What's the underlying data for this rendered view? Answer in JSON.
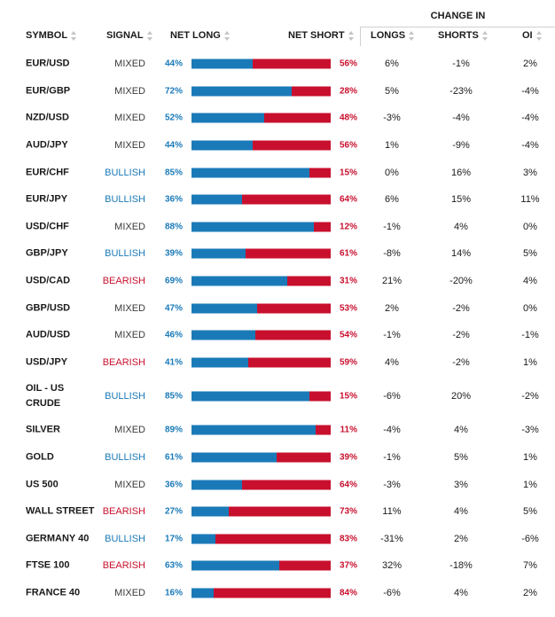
{
  "header": {
    "change_in": "CHANGE IN",
    "symbol": "SYMBOL",
    "signal": "SIGNAL",
    "net_long": "NET LONG",
    "net_short": "NET SHORT",
    "longs": "LONGS",
    "shorts": "SHORTS",
    "oi": "OI"
  },
  "colors": {
    "long": "#1a7ab8",
    "short": "#c8102e",
    "bullish": "#1a7ab8",
    "bearish": "#c8102e",
    "mixed": "#3a3a3a"
  },
  "rows": [
    {
      "symbol": "EUR/USD",
      "signal": "MIXED",
      "net_long": "44%",
      "net_long_value": 44,
      "net_short": "56%",
      "longs": "6%",
      "shorts": "-1%",
      "oi": "2%"
    },
    {
      "symbol": "EUR/GBP",
      "signal": "MIXED",
      "net_long": "72%",
      "net_long_value": 72,
      "net_short": "28%",
      "longs": "5%",
      "shorts": "-23%",
      "oi": "-4%"
    },
    {
      "symbol": "NZD/USD",
      "signal": "MIXED",
      "net_long": "52%",
      "net_long_value": 52,
      "net_short": "48%",
      "longs": "-3%",
      "shorts": "-4%",
      "oi": "-4%"
    },
    {
      "symbol": "AUD/JPY",
      "signal": "MIXED",
      "net_long": "44%",
      "net_long_value": 44,
      "net_short": "56%",
      "longs": "1%",
      "shorts": "-9%",
      "oi": "-4%"
    },
    {
      "symbol": "EUR/CHF",
      "signal": "BULLISH",
      "net_long": "85%",
      "net_long_value": 85,
      "net_short": "15%",
      "longs": "0%",
      "shorts": "16%",
      "oi": "3%"
    },
    {
      "symbol": "EUR/JPY",
      "signal": "BULLISH",
      "net_long": "36%",
      "net_long_value": 36,
      "net_short": "64%",
      "longs": "6%",
      "shorts": "15%",
      "oi": "11%"
    },
    {
      "symbol": "USD/CHF",
      "signal": "MIXED",
      "net_long": "88%",
      "net_long_value": 88,
      "net_short": "12%",
      "longs": "-1%",
      "shorts": "4%",
      "oi": "0%"
    },
    {
      "symbol": "GBP/JPY",
      "signal": "BULLISH",
      "net_long": "39%",
      "net_long_value": 39,
      "net_short": "61%",
      "longs": "-8%",
      "shorts": "14%",
      "oi": "5%"
    },
    {
      "symbol": "USD/CAD",
      "signal": "BEARISH",
      "net_long": "69%",
      "net_long_value": 69,
      "net_short": "31%",
      "longs": "21%",
      "shorts": "-20%",
      "oi": "4%"
    },
    {
      "symbol": "GBP/USD",
      "signal": "MIXED",
      "net_long": "47%",
      "net_long_value": 47,
      "net_short": "53%",
      "longs": "2%",
      "shorts": "-2%",
      "oi": "0%"
    },
    {
      "symbol": "AUD/USD",
      "signal": "MIXED",
      "net_long": "46%",
      "net_long_value": 46,
      "net_short": "54%",
      "longs": "-1%",
      "shorts": "-2%",
      "oi": "-1%"
    },
    {
      "symbol": "USD/JPY",
      "signal": "BEARISH",
      "net_long": "41%",
      "net_long_value": 41,
      "net_short": "59%",
      "longs": "4%",
      "shorts": "-2%",
      "oi": "1%"
    },
    {
      "symbol": "OIL - US CRUDE",
      "signal": "BULLISH",
      "net_long": "85%",
      "net_long_value": 85,
      "net_short": "15%",
      "longs": "-6%",
      "shorts": "20%",
      "oi": "-2%"
    },
    {
      "symbol": "SILVER",
      "signal": "MIXED",
      "net_long": "89%",
      "net_long_value": 89,
      "net_short": "11%",
      "longs": "-4%",
      "shorts": "4%",
      "oi": "-3%"
    },
    {
      "symbol": "GOLD",
      "signal": "BULLISH",
      "net_long": "61%",
      "net_long_value": 61,
      "net_short": "39%",
      "longs": "-1%",
      "shorts": "5%",
      "oi": "1%"
    },
    {
      "symbol": "US 500",
      "signal": "MIXED",
      "net_long": "36%",
      "net_long_value": 36,
      "net_short": "64%",
      "longs": "-3%",
      "shorts": "3%",
      "oi": "1%"
    },
    {
      "symbol": "WALL STREET",
      "signal": "BEARISH",
      "net_long": "27%",
      "net_long_value": 27,
      "net_short": "73%",
      "longs": "11%",
      "shorts": "4%",
      "oi": "5%"
    },
    {
      "symbol": "GERMANY 40",
      "signal": "BULLISH",
      "net_long": "17%",
      "net_long_value": 17,
      "net_short": "83%",
      "longs": "-31%",
      "shorts": "2%",
      "oi": "-6%"
    },
    {
      "symbol": "FTSE 100",
      "signal": "BEARISH",
      "net_long": "63%",
      "net_long_value": 63,
      "net_short": "37%",
      "longs": "32%",
      "shorts": "-18%",
      "oi": "7%"
    },
    {
      "symbol": "FRANCE 40",
      "signal": "MIXED",
      "net_long": "16%",
      "net_long_value": 16,
      "net_short": "84%",
      "longs": "-6%",
      "shorts": "4%",
      "oi": "2%"
    }
  ]
}
